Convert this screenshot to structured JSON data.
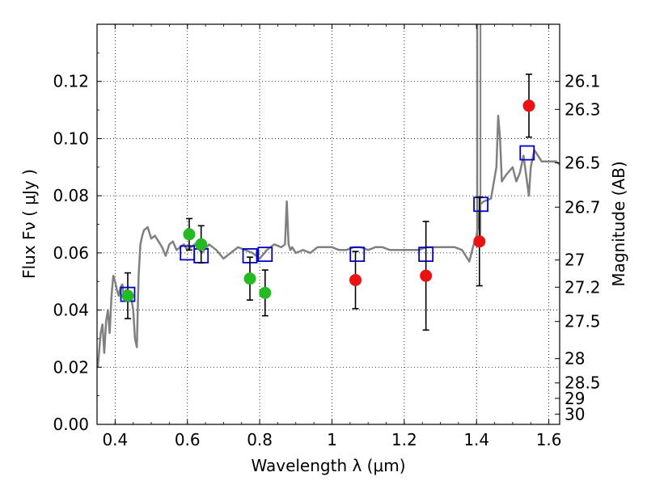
{
  "chart_data": {
    "type": "scatter",
    "title": "",
    "xlabel": "Wavelength  λ (μm)",
    "ylabel": "Flux  Fν  ( μJy )",
    "y2label": "Magnitude (AB)",
    "xlim": [
      0.35,
      1.63
    ],
    "ylim": [
      0.0,
      0.14
    ],
    "grid": true,
    "x_ticks": [
      0.4,
      0.6,
      0.8,
      1.0,
      1.2,
      1.4,
      1.6
    ],
    "x_tick_labels": [
      "0.4",
      "0.6",
      "0.8",
      "1",
      "1.2",
      "1.4",
      "1.6"
    ],
    "y_ticks": [
      0.0,
      0.02,
      0.04,
      0.06,
      0.08,
      0.1,
      0.12
    ],
    "y_tick_labels": [
      "0.00",
      "0.02",
      "0.04",
      "0.06",
      "0.08",
      "0.10",
      "0.12"
    ],
    "y2_ticks": [
      {
        "flux": 0.12,
        "label": "26.1"
      },
      {
        "flux": 0.1102,
        "label": "26.3"
      },
      {
        "flux": 0.0915,
        "label": "26.5"
      },
      {
        "flux": 0.076,
        "label": "26.7"
      },
      {
        "flux": 0.0575,
        "label": "27"
      },
      {
        "flux": 0.048,
        "label": "27.2"
      },
      {
        "flux": 0.036,
        "label": "27.5"
      },
      {
        "flux": 0.023,
        "label": "28"
      },
      {
        "flux": 0.0145,
        "label": "28.5"
      },
      {
        "flux": 0.0091,
        "label": "29"
      },
      {
        "flux": 0.0036,
        "label": "30"
      }
    ],
    "series": [
      {
        "kind": "line",
        "color": "#808080",
        "x": [
          0.352,
          0.36,
          0.365,
          0.37,
          0.375,
          0.38,
          0.385,
          0.39,
          0.395,
          0.4,
          0.405,
          0.41,
          0.415,
          0.42,
          0.425,
          0.43,
          0.435,
          0.44,
          0.445,
          0.45,
          0.455,
          0.46,
          0.465,
          0.47,
          0.475,
          0.48,
          0.49,
          0.5,
          0.51,
          0.52,
          0.53,
          0.54,
          0.55,
          0.56,
          0.57,
          0.58,
          0.59,
          0.6,
          0.62,
          0.64,
          0.66,
          0.68,
          0.7,
          0.72,
          0.74,
          0.76,
          0.78,
          0.8,
          0.82,
          0.84,
          0.86,
          0.87,
          0.875,
          0.88,
          0.885,
          0.89,
          0.9,
          0.92,
          0.94,
          0.96,
          0.98,
          1.0,
          1.02,
          1.04,
          1.06,
          1.08,
          1.1,
          1.12,
          1.14,
          1.16,
          1.18,
          1.2,
          1.22,
          1.24,
          1.26,
          1.28,
          1.3,
          1.32,
          1.34,
          1.36,
          1.38,
          1.39,
          1.4,
          1.405,
          1.41,
          1.42,
          1.44,
          1.455,
          1.46,
          1.465,
          1.47,
          1.48,
          1.5,
          1.51,
          1.52,
          1.53,
          1.545,
          1.55,
          1.56,
          1.58,
          1.6,
          1.62,
          1.63
        ],
        "y": [
          0.02,
          0.032,
          0.035,
          0.025,
          0.036,
          0.04,
          0.032,
          0.045,
          0.052,
          0.05,
          0.047,
          0.045,
          0.048,
          0.049,
          0.044,
          0.047,
          0.046,
          0.045,
          0.044,
          0.04,
          0.03,
          0.027,
          0.052,
          0.063,
          0.066,
          0.068,
          0.069,
          0.065,
          0.066,
          0.064,
          0.062,
          0.059,
          0.063,
          0.064,
          0.061,
          0.062,
          0.063,
          0.061,
          0.063,
          0.06,
          0.063,
          0.061,
          0.058,
          0.06,
          0.062,
          0.061,
          0.06,
          0.058,
          0.061,
          0.063,
          0.062,
          0.063,
          0.078,
          0.063,
          0.061,
          0.062,
          0.06,
          0.061,
          0.06,
          0.062,
          0.062,
          0.062,
          0.061,
          0.061,
          0.062,
          0.062,
          0.061,
          0.062,
          0.062,
          0.061,
          0.061,
          0.061,
          0.061,
          0.061,
          0.062,
          0.062,
          0.062,
          0.062,
          0.062,
          0.061,
          0.057,
          0.062,
          0.066,
          0.07,
          0.077,
          0.078,
          0.079,
          0.09,
          0.108,
          0.1,
          0.085,
          0.087,
          0.09,
          0.085,
          0.088,
          0.094,
          0.08,
          0.09,
          0.096,
          0.092,
          0.092,
          0.092,
          0.091
        ]
      },
      {
        "kind": "markers",
        "name": "",
        "marker": "open-square",
        "color": "#0000cc",
        "x": [
          0.435,
          0.6,
          0.638,
          0.773,
          0.815,
          1.07,
          1.26,
          1.412,
          1.54
        ],
        "y": [
          0.0455,
          0.06,
          0.059,
          0.059,
          0.0595,
          0.0595,
          0.0595,
          0.077,
          0.095
        ]
      },
      {
        "kind": "markers-errorbars",
        "name": "",
        "marker": "filled-circle",
        "color": "#22bb22",
        "x": [
          0.435,
          0.605,
          0.638,
          0.773,
          0.815
        ],
        "y": [
          0.045,
          0.0665,
          0.063,
          0.051,
          0.046
        ],
        "yerr": [
          0.008,
          0.0055,
          0.0065,
          0.0075,
          0.008
        ]
      },
      {
        "kind": "markers-errorbars",
        "name": "",
        "marker": "filled-circle",
        "color": "#ee1111",
        "x": [
          1.065,
          1.26,
          1.408,
          1.545
        ],
        "y": [
          0.0505,
          0.052,
          0.064,
          0.1115
        ],
        "yerr": [
          0.01,
          0.019,
          0.0155,
          0.011
        ]
      }
    ]
  }
}
